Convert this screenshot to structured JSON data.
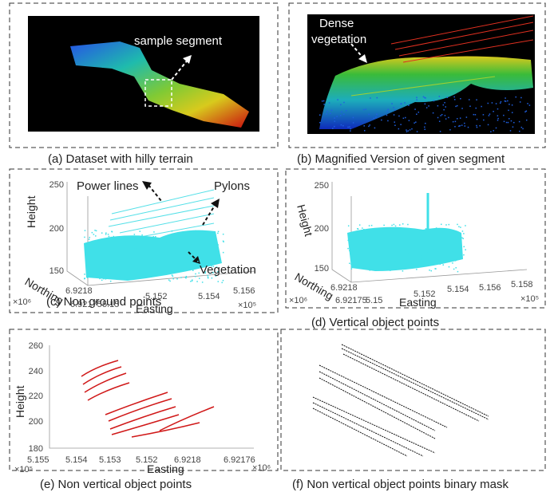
{
  "panels": [
    {
      "caption": "(a)  Dataset with hilly terrain",
      "annotations": [
        "sample segment"
      ]
    },
    {
      "caption": "(b)  Magnified Version of given segment",
      "annotations": [
        "Dense",
        "vegetation"
      ]
    },
    {
      "caption": "(c)   Non ground points",
      "axes": {
        "z_label": "Height",
        "y_label": "Northing",
        "x_label": "Easting",
        "z_ticks": [
          "250",
          "200",
          "150"
        ],
        "y_ticks": [
          "6.9218",
          "6.92175"
        ],
        "x_ticks": [
          "5.15",
          "5.152",
          "5.154",
          "5.156"
        ],
        "y_exp": "×10⁶",
        "x_exp": "×10⁵"
      },
      "annotations": [
        "Power lines",
        "Pylons",
        "Vegetation"
      ]
    },
    {
      "caption": "(d)   Vertical object points",
      "axes": {
        "z_label": "Height",
        "y_label": "Northing",
        "x_label": "Easting",
        "z_ticks": [
          "250",
          "200",
          "150"
        ],
        "y_ticks": [
          "6.9218",
          "6.92175"
        ],
        "x_ticks": [
          "5.15",
          "5.152",
          "5.154",
          "5.156",
          "5.158"
        ],
        "y_exp": "×10⁶",
        "x_exp": "×10⁵"
      }
    },
    {
      "caption": "(e) Non vertical object points",
      "axes": {
        "z_label": "Height",
        "x_label": "Easting",
        "z_ticks": [
          "260",
          "240",
          "220",
          "200",
          "180"
        ],
        "x_ticks": [
          "5.155",
          "5.154",
          "5.153",
          "5.152",
          "6.9218",
          "6.92176"
        ],
        "x_exp": "×10⁵",
        "y_exp": "×10⁶"
      }
    },
    {
      "caption": "(f) Non vertical object points binary mask"
    }
  ]
}
